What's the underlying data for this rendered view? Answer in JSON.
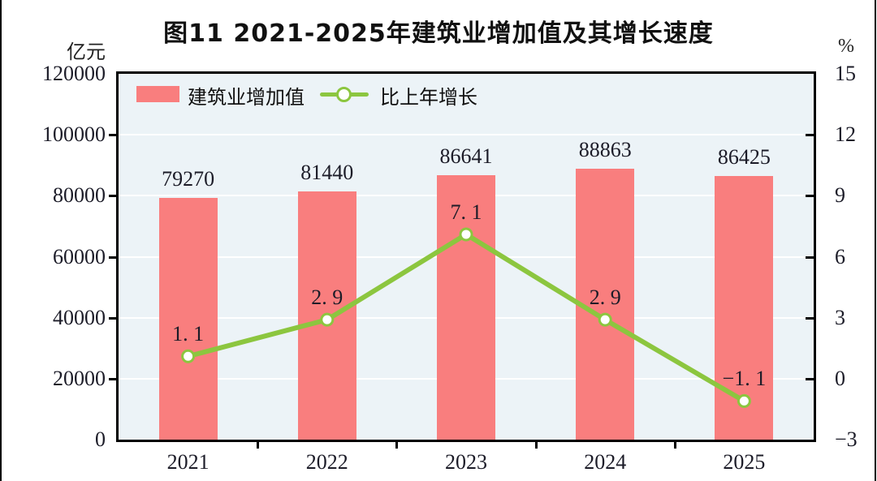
{
  "page_title": "图11  2021-2025年建筑业增加值及其增长速度",
  "chart_data": {
    "type": "bar+line",
    "title": "图11  2021-2025年建筑业增加值及其增长速度",
    "categories": [
      "2021",
      "2022",
      "2023",
      "2024",
      "2025"
    ],
    "series": [
      {
        "name": "建筑业增加值",
        "type": "bar",
        "axis": "left",
        "values": [
          79270,
          81440,
          86641,
          88863,
          86425
        ],
        "labels": [
          "79270",
          "81440",
          "86641",
          "88863",
          "86425"
        ],
        "color": "#F97E7E"
      },
      {
        "name": "比上年增长",
        "type": "line",
        "axis": "right",
        "values": [
          1.1,
          2.9,
          7.1,
          2.9,
          -1.1
        ],
        "labels": [
          "1. 1",
          "2. 9",
          "7. 1",
          "2. 9",
          "−1. 1"
        ],
        "color": "#8CC63F",
        "marker_fill": "#FFFFFF"
      }
    ],
    "y_left": {
      "unit": "亿元",
      "min": 0,
      "max": 120000,
      "ticks": [
        0,
        20000,
        40000,
        60000,
        80000,
        100000,
        120000
      ],
      "tick_labels": [
        "0",
        "20000",
        "40000",
        "60000",
        "80000",
        "100000",
        "120000"
      ]
    },
    "y_right": {
      "unit": "%",
      "min": -3,
      "max": 15,
      "ticks": [
        -3,
        0,
        3,
        6,
        9,
        12,
        15
      ],
      "tick_labels": [
        "−3",
        "0",
        "3",
        "6",
        "9",
        "12",
        "15"
      ]
    },
    "legend_position": "top-left-inside",
    "grid": true,
    "colors": {
      "plot_bg": "#ECF3F7",
      "grid": "#FFFFFF",
      "axis": "#000000",
      "text": "#1C1C28"
    }
  }
}
